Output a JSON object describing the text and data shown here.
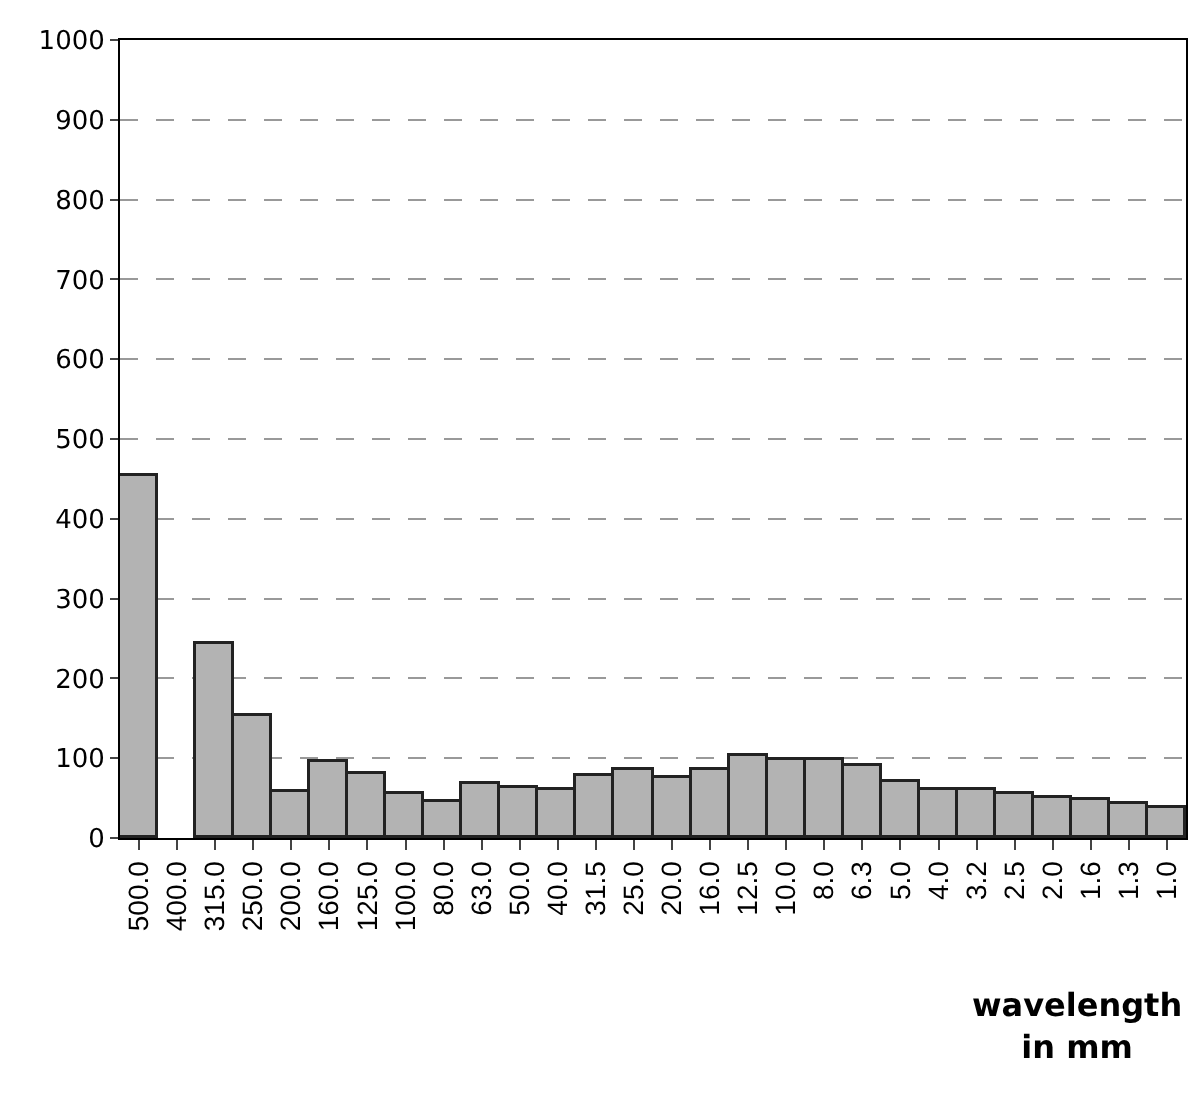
{
  "chart_data": {
    "type": "bar",
    "xlabel": "wavelength\nin mm",
    "categories": [
      "500.0",
      "400.0",
      "315.0",
      "250.0",
      "200.0",
      "160.0",
      "125.0",
      "100.0",
      "80.0",
      "63.0",
      "50.0",
      "40.0",
      "31.5",
      "25.0",
      "20.0",
      "16.0",
      "12.5",
      "10.0",
      "8.0",
      "6.3",
      "5.0",
      "4.0",
      "3.2",
      "2.5",
      "2.0",
      "1.6",
      "1.3",
      "1.0"
    ],
    "values": [
      453,
      0,
      242,
      153,
      57,
      95,
      81,
      54,
      44,
      68,
      63,
      60,
      77,
      84,
      74,
      86,
      103,
      97,
      98,
      90,
      71,
      59,
      59,
      54,
      50,
      48,
      42,
      38
    ],
    "color": "#b3b3b3",
    "ylim": [
      0,
      1000
    ],
    "yticks": [
      0,
      100,
      200,
      300,
      400,
      500,
      600,
      700,
      800,
      900,
      1000
    ],
    "grid": "y"
  }
}
